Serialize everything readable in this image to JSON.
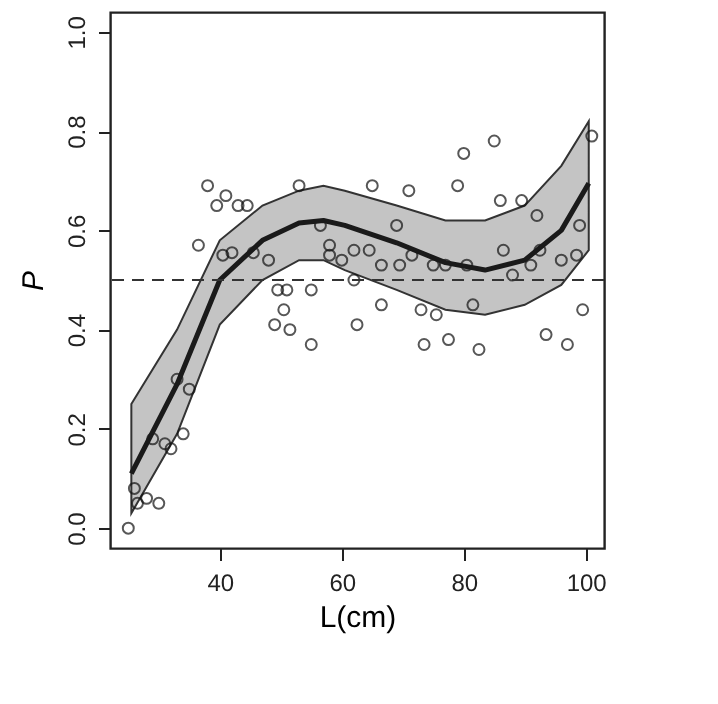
{
  "chart_data": {
    "type": "scatter",
    "xlabel": "L(cm)",
    "ylabel": "P",
    "xlim": [
      22,
      103
    ],
    "ylim": [
      -0.04,
      1.04
    ],
    "xticks": [
      40,
      60,
      80,
      100
    ],
    "yticks": [
      {
        "value": 0,
        "label": "0.0"
      },
      0.2,
      0.4,
      0.6,
      0.8,
      {
        "value": 1,
        "label": "1.0"
      }
    ],
    "grid": false,
    "marker": "circle",
    "series": [
      {
        "color": "#111111",
        "x": [
          25,
          26,
          26.5,
          28,
          30,
          29,
          31,
          32,
          34,
          33,
          35,
          38,
          39.5,
          41,
          43,
          44.5,
          36.5,
          40.5,
          42,
          45.5,
          48,
          53,
          56.5,
          58,
          58,
          60,
          62,
          65,
          49.5,
          51,
          55,
          50.5,
          49,
          51.5,
          55,
          62.5,
          66.5,
          80,
          85,
          71,
          79,
          86,
          89.5,
          92,
          101,
          69,
          99,
          64.5,
          66.5,
          69.5,
          71.5,
          75,
          77,
          80.5,
          86.5,
          88,
          91,
          92.5,
          96,
          98.5,
          62,
          73,
          75.5,
          81.5,
          73.5,
          77.5,
          82.5,
          93.5,
          97,
          99.5
        ],
        "values": [
          0,
          0.08,
          0.05,
          0.06,
          0.05,
          0.18,
          0.17,
          0.16,
          0.19,
          0.3,
          0.28,
          0.69,
          0.65,
          0.67,
          0.65,
          0.65,
          0.57,
          0.55,
          0.555,
          0.555,
          0.54,
          0.69,
          0.61,
          0.57,
          0.55,
          0.54,
          0.56,
          0.69,
          0.48,
          0.48,
          0.48,
          0.44,
          0.41,
          0.4,
          0.37,
          0.41,
          0.45,
          0.755,
          0.78,
          0.68,
          0.69,
          0.66,
          0.66,
          0.63,
          0.79,
          0.61,
          0.61,
          0.56,
          0.53,
          0.53,
          0.55,
          0.53,
          0.53,
          0.53,
          0.56,
          0.51,
          0.53,
          0.56,
          0.54,
          0.55,
          0.5,
          0.44,
          0.43,
          0.45,
          0.37,
          0.38,
          0.36,
          0.39,
          0.37,
          0.44
        ]
      },
      {
        "type": "line",
        "color": "#1a1a1a",
        "marker": "none",
        "line_style": "solid",
        "x": [
          25.5,
          33,
          40,
          47,
          53,
          57,
          60.5,
          69,
          77,
          83.5,
          90,
          96,
          100.5
        ],
        "values": [
          0.11,
          0.29,
          0.5,
          0.58,
          0.615,
          0.62,
          0.61,
          0.575,
          0.535,
          0.52,
          0.54,
          0.6,
          0.695
        ],
        "lower": [
          0.03,
          0.19,
          0.41,
          0.5,
          0.54,
          0.54,
          0.52,
          0.48,
          0.44,
          0.43,
          0.45,
          0.49,
          0.56
        ],
        "upper": [
          0.25,
          0.4,
          0.58,
          0.65,
          0.68,
          0.69,
          0.68,
          0.65,
          0.62,
          0.62,
          0.65,
          0.73,
          0.82
        ]
      }
    ],
    "ref_lines": [
      {
        "axis": "y",
        "value": 0.5,
        "color": "#333333",
        "line_style": "dashed"
      }
    ]
  }
}
